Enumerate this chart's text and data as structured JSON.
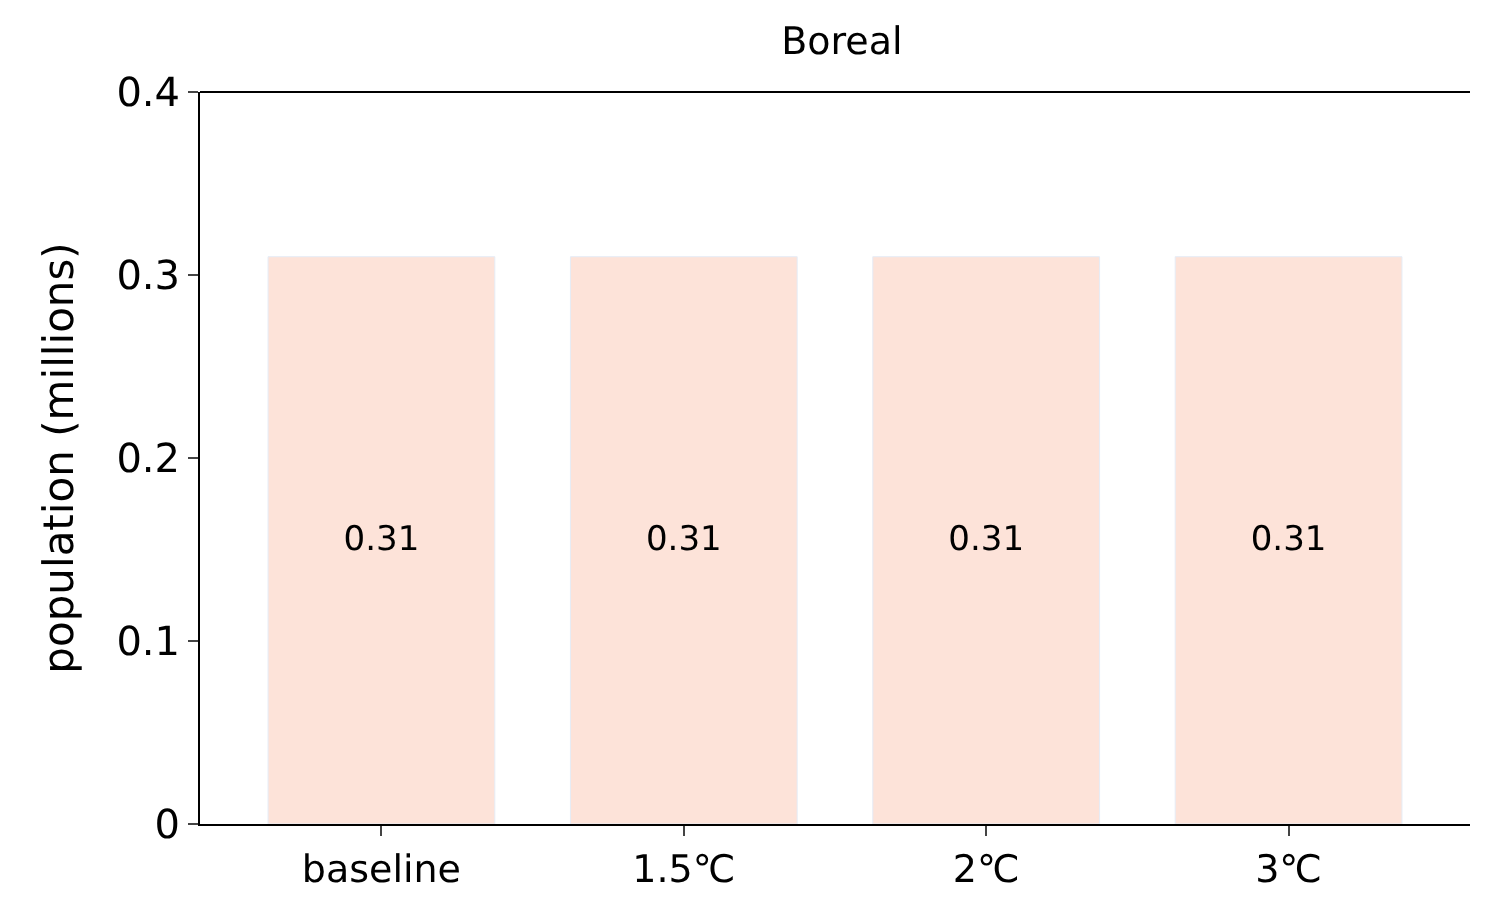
{
  "chart_data": {
    "type": "bar",
    "title": "Boreal",
    "ylabel": "population (millions)",
    "categories": [
      "baseline",
      "1.5℃",
      "2℃",
      "3℃"
    ],
    "values": [
      0.31,
      0.31,
      0.31,
      0.31
    ],
    "color": "#fde3d9",
    "ylim": [
      0,
      0.4
    ],
    "yticks": [
      {
        "value": 0,
        "label": "0"
      },
      0.1,
      0.2,
      0.3,
      0.4
    ],
    "data_labels": true
  }
}
